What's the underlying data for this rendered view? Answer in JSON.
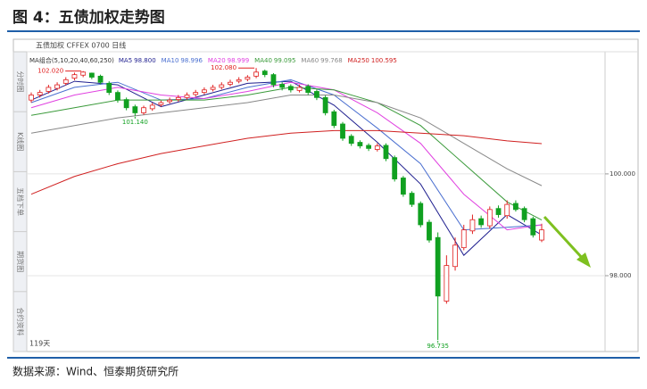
{
  "title": "图 4：五债加权走势图",
  "source": "数据来源：Wind、恒泰期货研究所",
  "tabs": [
    "分时图",
    "K线图",
    "五档下单",
    "期货图",
    "合约资料"
  ],
  "chart_data": {
    "type": "candlestick",
    "header": "五债加权 CFFEX 0700 日线",
    "ma_group": "MA组合(5,10,20,40,60,250)",
    "days": "119天",
    "open": [
      101.45,
      101.55,
      101.62,
      101.68,
      101.78,
      101.88,
      101.94,
      101.98,
      101.92,
      101.78,
      101.6,
      101.46,
      101.32,
      101.2,
      101.28,
      101.36,
      101.42,
      101.46,
      101.5,
      101.56,
      101.6,
      101.66,
      101.7,
      101.76,
      101.82,
      101.86,
      101.92,
      102.02,
      101.95,
      101.76,
      101.72,
      101.64,
      101.72,
      101.62,
      101.5,
      101.22,
      100.98,
      100.74,
      100.62,
      100.56,
      100.48,
      100.56,
      100.32,
      99.92,
      99.62,
      99.42,
      99.05,
      98.75,
      97.5,
      98.18,
      98.55,
      98.88,
      99.12,
      98.98,
      99.32,
      99.18,
      99.42,
      99.32,
      99.12,
      98.7
    ],
    "high": [
      101.6,
      101.65,
      101.75,
      101.8,
      101.9,
      101.99,
      102.02,
      101.99,
      101.95,
      101.82,
      101.64,
      101.5,
      101.36,
      101.34,
      101.4,
      101.44,
      101.5,
      101.55,
      101.6,
      101.65,
      101.7,
      101.75,
      101.8,
      101.85,
      101.9,
      101.94,
      102.08,
      102.05,
      101.98,
      101.8,
      101.76,
      101.75,
      101.76,
      101.66,
      101.54,
      101.26,
      101.02,
      100.78,
      100.66,
      100.6,
      100.6,
      100.6,
      100.36,
      99.96,
      99.66,
      99.46,
      99.1,
      98.85,
      98.4,
      98.75,
      99.0,
      99.2,
      99.18,
      99.36,
      99.38,
      99.48,
      99.48,
      99.36,
      99.16,
      99.02
    ],
    "low": [
      101.4,
      101.5,
      101.58,
      101.64,
      101.74,
      101.84,
      101.9,
      101.86,
      101.76,
      101.55,
      101.4,
      101.25,
      101.14,
      101.16,
      101.24,
      101.32,
      101.38,
      101.42,
      101.46,
      101.52,
      101.56,
      101.62,
      101.66,
      101.72,
      101.78,
      101.82,
      101.88,
      101.9,
      101.7,
      101.64,
      101.6,
      101.6,
      101.55,
      101.45,
      101.15,
      100.9,
      100.65,
      100.55,
      100.5,
      100.45,
      100.44,
      100.25,
      99.85,
      99.55,
      99.35,
      98.95,
      98.65,
      96.735,
      97.45,
      98.1,
      98.5,
      98.82,
      98.94,
      98.92,
      99.14,
      99.12,
      99.26,
      99.05,
      98.75,
      98.66
    ],
    "close": [
      101.55,
      101.6,
      101.7,
      101.75,
      101.85,
      101.95,
      102.0,
      101.9,
      101.8,
      101.6,
      101.45,
      101.3,
      101.2,
      101.3,
      101.35,
      101.4,
      101.45,
      101.5,
      101.55,
      101.6,
      101.65,
      101.7,
      101.75,
      101.8,
      101.85,
      101.9,
      102.0,
      101.95,
      101.75,
      101.7,
      101.65,
      101.7,
      101.6,
      101.5,
      101.2,
      100.95,
      100.7,
      100.6,
      100.55,
      100.5,
      100.55,
      100.3,
      99.9,
      99.6,
      99.4,
      99.0,
      98.7,
      97.6,
      98.2,
      98.6,
      98.9,
      99.1,
      99.0,
      99.3,
      99.2,
      99.4,
      99.3,
      99.1,
      98.8,
      98.9
    ],
    "up_color": "#e02020",
    "down_color": "#10a020",
    "ma_x": [
      0,
      5,
      10,
      15,
      20,
      25,
      30,
      35,
      40,
      45,
      50,
      55,
      59
    ],
    "series": [
      {
        "name": "MA5",
        "last_label": "98.800",
        "color": "#1f1f8f",
        "values": [
          101.45,
          101.82,
          101.75,
          101.32,
          101.55,
          101.78,
          101.82,
          101.35,
          100.62,
          99.8,
          98.4,
          99.2,
          98.8
        ]
      },
      {
        "name": "MA10",
        "last_label": "98.996",
        "color": "#4a6fd0",
        "values": [
          101.4,
          101.7,
          101.8,
          101.45,
          101.48,
          101.7,
          101.85,
          101.55,
          100.9,
          100.2,
          98.9,
          98.95,
          98.996
        ]
      },
      {
        "name": "MA20",
        "last_label": "98.999",
        "color": "#e040e0",
        "values": [
          101.3,
          101.55,
          101.7,
          101.55,
          101.48,
          101.62,
          101.8,
          101.65,
          101.2,
          100.6,
          99.6,
          98.9,
          98.999
        ]
      },
      {
        "name": "MA40",
        "last_label": "99.095",
        "color": "#3a9a3a",
        "values": [
          101.15,
          101.3,
          101.45,
          101.45,
          101.45,
          101.55,
          101.7,
          101.65,
          101.4,
          100.95,
          100.2,
          99.45,
          99.095
        ]
      },
      {
        "name": "MA60",
        "last_label": "99.768",
        "color": "#888888",
        "values": [
          100.8,
          100.95,
          101.1,
          101.2,
          101.3,
          101.4,
          101.55,
          101.55,
          101.4,
          101.1,
          100.6,
          100.1,
          99.768
        ]
      },
      {
        "name": "MA250",
        "last_label": "100.595",
        "color": "#d02020",
        "values": [
          99.6,
          99.95,
          100.2,
          100.4,
          100.55,
          100.7,
          100.8,
          100.85,
          100.85,
          100.8,
          100.75,
          100.65,
          100.595
        ]
      }
    ],
    "annotations": [
      {
        "x": 6,
        "value": 102.02,
        "label": "102.020",
        "color": "#e02020"
      },
      {
        "x": 26,
        "value": 102.08,
        "label": "102.080",
        "color": "#e02020"
      },
      {
        "x": 12,
        "value": 101.14,
        "label": "101.140",
        "color": "#10a020"
      },
      {
        "x": 47,
        "value": 96.735,
        "label": "96.735",
        "color": "#10a020"
      }
    ],
    "xlim": [
      0,
      59
    ],
    "ylim": [
      96.58,
      102.54
    ],
    "yticks": [
      {
        "value": 100,
        "label": "100.000"
      },
      {
        "value": 98,
        "label": "98.000"
      }
    ],
    "grid": true
  }
}
